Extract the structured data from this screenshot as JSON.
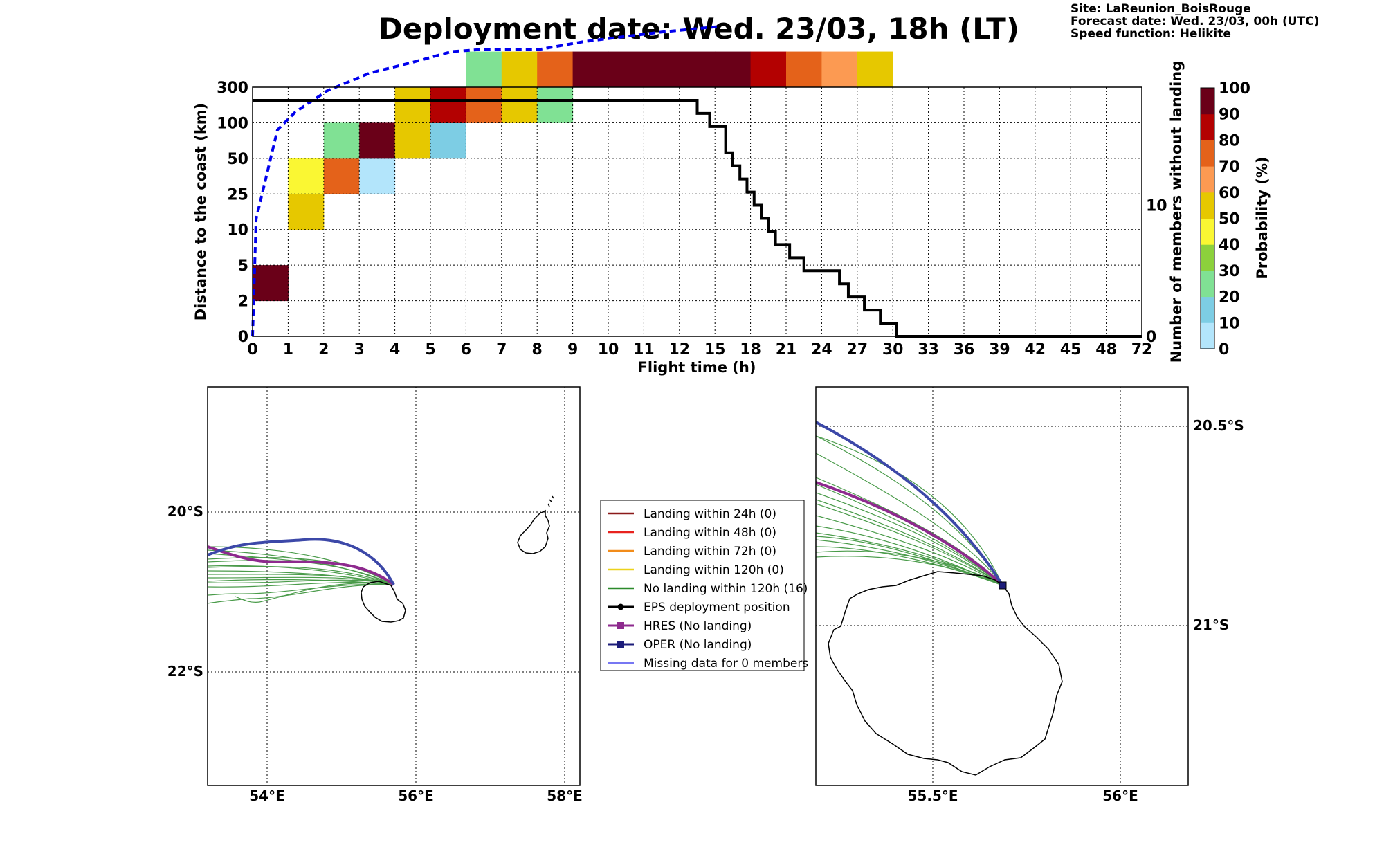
{
  "header": {
    "title": "Deployment date: Wed. 23/03, 18h (LT)",
    "info": [
      "Site: LaReunion_BoisRouge",
      "Forecast date: Wed. 23/03, 00h (UTC)",
      "Speed function: Helikite"
    ]
  },
  "chart_data": [
    {
      "type": "heatmap",
      "xlabel": "Flight time (h)",
      "ylabel": "Distance to the coast (km)",
      "ylabel_right": "Number of members without landing",
      "colorbar_label": "Probability (%)",
      "x_ticks": [
        "0",
        "1",
        "2",
        "3",
        "4",
        "5",
        "6",
        "7",
        "8",
        "9",
        "10",
        "11",
        "12",
        "15",
        "18",
        "21",
        "24",
        "27",
        "30",
        "33",
        "36",
        "39",
        "42",
        "45",
        "48",
        "72"
      ],
      "y_ticks": [
        "0",
        "2",
        "5",
        "10",
        "25",
        "50",
        "100",
        "300"
      ],
      "y2_ticks": [
        {
          "label": "0",
          "value": 0
        },
        {
          "label": "10",
          "value": 10
        }
      ],
      "y2_range": [
        0,
        19
      ],
      "colorbar": {
        "ticks": [
          "0",
          "10",
          "20",
          "30",
          "40",
          "50",
          "60",
          "70",
          "80",
          "90",
          "100"
        ],
        "colors": [
          "#b3e5fb",
          "#7dcde4",
          "#80e194",
          "#8cd13c",
          "#faf733",
          "#e6c800",
          "#fc9a52",
          "#e4621a",
          "#b30101",
          "#6a0018"
        ]
      },
      "cells": [
        {
          "x": 0,
          "y": 1,
          "prob": 100
        },
        {
          "x": 1,
          "y": 3,
          "prob": 50
        },
        {
          "x": 1,
          "y": 4,
          "prob": 40
        },
        {
          "x": 2,
          "y": 4,
          "prob": 70
        },
        {
          "x": 2,
          "y": 5,
          "prob": 20
        },
        {
          "x": 3,
          "y": 4,
          "prob": 0
        },
        {
          "x": 3,
          "y": 5,
          "prob": 100
        },
        {
          "x": 4,
          "y": 5,
          "prob": 50
        },
        {
          "x": 4,
          "y": 6,
          "prob": 50
        },
        {
          "x": 5,
          "y": 5,
          "prob": 10
        },
        {
          "x": 5,
          "y": 6,
          "prob": 80
        },
        {
          "x": 6,
          "y": 6,
          "prob": 70
        },
        {
          "x": 6,
          "y": 7,
          "prob": 20
        },
        {
          "x": 7,
          "y": 6,
          "prob": 50
        },
        {
          "x": 7,
          "y": 7,
          "prob": 50
        },
        {
          "x": 8,
          "y": 6,
          "prob": 20
        },
        {
          "x": 8,
          "y": 7,
          "prob": 70
        },
        {
          "x": 9,
          "y": 7,
          "prob": 100
        },
        {
          "x": 10,
          "y": 7,
          "prob": 100
        },
        {
          "x": 11,
          "y": 7,
          "prob": 100
        },
        {
          "x": 12,
          "y": 7,
          "prob": 100
        },
        {
          "x": 13,
          "y": 7,
          "prob": 100
        },
        {
          "x": 14,
          "y": 7,
          "prob": 80
        },
        {
          "x": 15,
          "y": 7,
          "prob": 70
        },
        {
          "x": 16,
          "y": 7,
          "prob": 60
        },
        {
          "x": 17,
          "y": 7,
          "prob": 50
        }
      ],
      "series": [
        {
          "name": "",
          "color": "#0000ee",
          "points": [
            [
              0,
              0
            ],
            [
              0.1,
              3.3
            ],
            [
              0.7,
              5.8
            ],
            [
              1.2,
              6.3
            ],
            [
              2.1,
              6.9
            ],
            [
              3.3,
              7.4
            ],
            [
              4.5,
              7.7
            ],
            [
              5.6,
              8.0
            ],
            [
              6.3,
              8.05
            ],
            [
              8.0,
              8.05
            ],
            [
              9.3,
              8.28
            ],
            [
              11.5,
              8.55
            ],
            [
              13.05,
              8.7
            ]
          ]
        },
        {
          "name": "",
          "color": "#000000",
          "steps": [
            [
              0,
              18
            ],
            [
              12.5,
              18
            ],
            [
              12.5,
              17
            ],
            [
              12.85,
              17
            ],
            [
              12.85,
              16
            ],
            [
              13.3,
              16
            ],
            [
              13.3,
              14
            ],
            [
              13.5,
              14
            ],
            [
              13.5,
              13
            ],
            [
              13.7,
              13
            ],
            [
              13.7,
              12
            ],
            [
              13.9,
              12
            ],
            [
              13.9,
              11
            ],
            [
              14.1,
              11
            ],
            [
              14.1,
              10
            ],
            [
              14.3,
              10
            ],
            [
              14.3,
              9
            ],
            [
              14.5,
              9
            ],
            [
              14.5,
              8
            ],
            [
              14.7,
              8
            ],
            [
              14.7,
              7
            ],
            [
              15.1,
              7
            ],
            [
              15.1,
              6
            ],
            [
              15.5,
              6
            ],
            [
              15.5,
              5
            ],
            [
              16.5,
              5
            ],
            [
              16.5,
              4
            ],
            [
              16.75,
              4
            ],
            [
              16.75,
              3
            ],
            [
              17.2,
              3
            ],
            [
              17.2,
              2
            ],
            [
              17.65,
              2
            ],
            [
              17.65,
              1
            ],
            [
              18.1,
              1
            ],
            [
              18.1,
              0
            ],
            [
              25,
              0
            ]
          ]
        }
      ]
    }
  ],
  "legend": {
    "items": [
      {
        "label": "Landing within 24h (0)",
        "color": "#8b1a1a",
        "style": "line"
      },
      {
        "label": "Landing within 48h (0)",
        "color": "#e8221e",
        "style": "line"
      },
      {
        "label": "Landing within 72h (0)",
        "color": "#f28c1a",
        "style": "line"
      },
      {
        "label": "Landing within 120h (0)",
        "color": "#ecd21c",
        "style": "line"
      },
      {
        "label": "No landing within 120h (16)",
        "color": "#2b8a2b",
        "style": "line"
      },
      {
        "label": "EPS deployment position",
        "color": "#000000",
        "style": "dot"
      },
      {
        "label": "HRES (No landing)",
        "color": "#8e2a8e",
        "style": "square"
      },
      {
        "label": "OPER (No landing)",
        "color": "#1c1c7a",
        "style": "square"
      },
      {
        "label": "Missing data for 0 members",
        "color": "#4a4aef",
        "style": "thin"
      }
    ]
  },
  "maps": {
    "left": {
      "x_labels": [
        "54°E",
        "56°E",
        "58°E"
      ],
      "y_labels": [
        "20°S",
        "22°S"
      ]
    },
    "right": {
      "x_labels": [
        "55.5°E",
        "56°E"
      ],
      "y_labels": [
        "20.5°S",
        "21°S"
      ]
    }
  }
}
